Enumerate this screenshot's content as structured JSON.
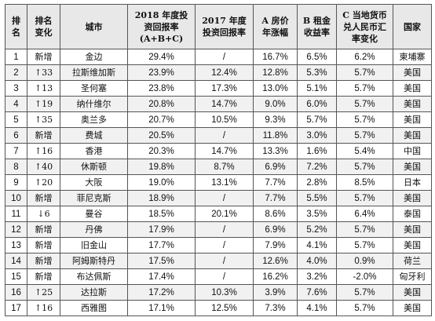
{
  "headers": {
    "rank": [
      "排",
      "名"
    ],
    "change": [
      "排名",
      "变化"
    ],
    "city": [
      "城市"
    ],
    "roi2018": [
      "2018 年度投",
      "资回报率",
      "(A+B+C)"
    ],
    "roi2017": [
      "2017 年度",
      "投资回报率"
    ],
    "price": [
      "A 房价",
      "年涨幅"
    ],
    "rent": [
      "B 租金",
      "收益率"
    ],
    "fx": [
      "C 当地货币",
      "兑人民币汇",
      "率变化"
    ],
    "country": [
      "国家"
    ]
  },
  "rows": [
    {
      "rank": "1",
      "change": "新增",
      "city": "金边",
      "roi2018": "29.4%",
      "roi2017": "/",
      "price": "16.7%",
      "rent": "6.5%",
      "fx": "6.2%",
      "country": "柬埔寨"
    },
    {
      "rank": "2",
      "change": "↑33",
      "city": "拉斯维加斯",
      "roi2018": "23.9%",
      "roi2017": "12.4%",
      "price": "12.8%",
      "rent": "5.3%",
      "fx": "5.7%",
      "country": "美国"
    },
    {
      "rank": "3",
      "change": "↑13",
      "city": "圣何塞",
      "roi2018": "23.8%",
      "roi2017": "17.3%",
      "price": "13.0%",
      "rent": "5.1%",
      "fx": "5.7%",
      "country": "美国"
    },
    {
      "rank": "4",
      "change": "↑19",
      "city": "纳什维尔",
      "roi2018": "20.8%",
      "roi2017": "14.7%",
      "price": "9.0%",
      "rent": "6.0%",
      "fx": "5.7%",
      "country": "美国"
    },
    {
      "rank": "5",
      "change": "↑35",
      "city": "奥兰多",
      "roi2018": "20.7%",
      "roi2017": "10.5%",
      "price": "9.3%",
      "rent": "5.7%",
      "fx": "5.7%",
      "country": "美国"
    },
    {
      "rank": "6",
      "change": "新增",
      "city": "费城",
      "roi2018": "20.5%",
      "roi2017": "/",
      "price": "11.8%",
      "rent": "3.0%",
      "fx": "5.7%",
      "country": "美国"
    },
    {
      "rank": "7",
      "change": "↑16",
      "city": "香港",
      "roi2018": "20.3%",
      "roi2017": "14.7%",
      "price": "13.3%",
      "rent": "1.6%",
      "fx": "5.4%",
      "country": "中国"
    },
    {
      "rank": "8",
      "change": "↑40",
      "city": "休斯顿",
      "roi2018": "19.8%",
      "roi2017": "8.7%",
      "price": "6.9%",
      "rent": "7.2%",
      "fx": "5.7%",
      "country": "美国"
    },
    {
      "rank": "9",
      "change": "↑20",
      "city": "大阪",
      "roi2018": "19.0%",
      "roi2017": "13.1%",
      "price": "7.7%",
      "rent": "2.8%",
      "fx": "8.5%",
      "country": "日本"
    },
    {
      "rank": "10",
      "change": "新增",
      "city": "菲尼克斯",
      "roi2018": "18.9%",
      "roi2017": "/",
      "price": "7.7%",
      "rent": "5.5%",
      "fx": "5.7%",
      "country": "美国"
    },
    {
      "rank": "11",
      "change": "↓6",
      "city": "曼谷",
      "roi2018": "18.5%",
      "roi2017": "20.1%",
      "price": "8.6%",
      "rent": "3.5%",
      "fx": "6.4%",
      "country": "泰国"
    },
    {
      "rank": "12",
      "change": "新增",
      "city": "丹佛",
      "roi2018": "17.9%",
      "roi2017": "/",
      "price": "6.9%",
      "rent": "5.2%",
      "fx": "5.7%",
      "country": "美国"
    },
    {
      "rank": "13",
      "change": "新增",
      "city": "旧金山",
      "roi2018": "17.7%",
      "roi2017": "/",
      "price": "7.9%",
      "rent": "4.1%",
      "fx": "5.7%",
      "country": "美国"
    },
    {
      "rank": "14",
      "change": "新增",
      "city": "阿姆斯特丹",
      "roi2018": "17.5%",
      "roi2017": "/",
      "price": "12.6%",
      "rent": "4.0%",
      "fx": "0.9%",
      "country": "荷兰"
    },
    {
      "rank": "15",
      "change": "新增",
      "city": "布达佩斯",
      "roi2018": "17.4%",
      "roi2017": "/",
      "price": "16.2%",
      "rent": "3.2%",
      "fx": "-2.0%",
      "country": "匈牙利"
    },
    {
      "rank": "16",
      "change": "↑25",
      "city": "达拉斯",
      "roi2018": "17.2%",
      "roi2017": "10.3%",
      "price": "3.9%",
      "rent": "7.6%",
      "fx": "5.7%",
      "country": "美国"
    },
    {
      "rank": "17",
      "change": "↑16",
      "city": "西雅图",
      "roi2018": "17.1%",
      "roi2017": "12.5%",
      "price": "7.3%",
      "rent": "4.1%",
      "fx": "5.7%",
      "country": "美国"
    }
  ]
}
